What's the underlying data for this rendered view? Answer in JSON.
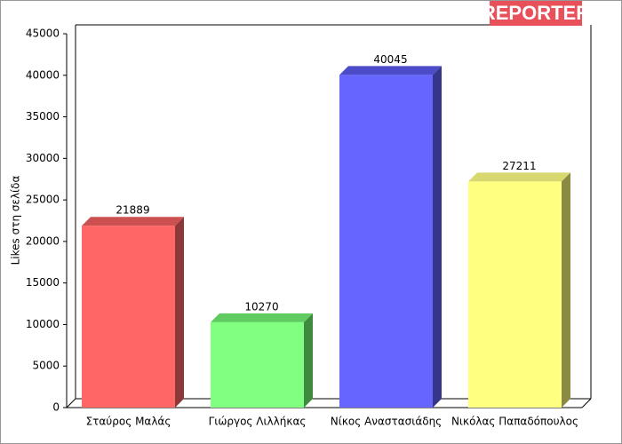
{
  "logo": "REPORTER",
  "chart_data": {
    "type": "bar3d",
    "y_label": "Likes στη σελίδα",
    "categories": [
      "Σταύρος Μαλάς",
      "Γιώργος Λιλλήκας",
      "Νίκος Αναστασιάδης",
      "Νικόλας Παπαδόπουλος"
    ],
    "values": [
      21889,
      10270,
      40045,
      27211
    ],
    "colors": [
      {
        "front": "#ff6666",
        "top": "#cc5050",
        "side": "#8c3838"
      },
      {
        "front": "#80ff80",
        "top": "#60cc60",
        "side": "#3e8a3e"
      },
      {
        "front": "#6666ff",
        "top": "#4c4cc8",
        "side": "#35358a"
      },
      {
        "front": "#ffff80",
        "top": "#d8d870",
        "side": "#8a8a42"
      }
    ],
    "ylim": [
      0,
      45000
    ],
    "yticks": [
      0,
      5000,
      10000,
      15000,
      20000,
      25000,
      30000,
      35000,
      40000,
      45000
    ]
  }
}
